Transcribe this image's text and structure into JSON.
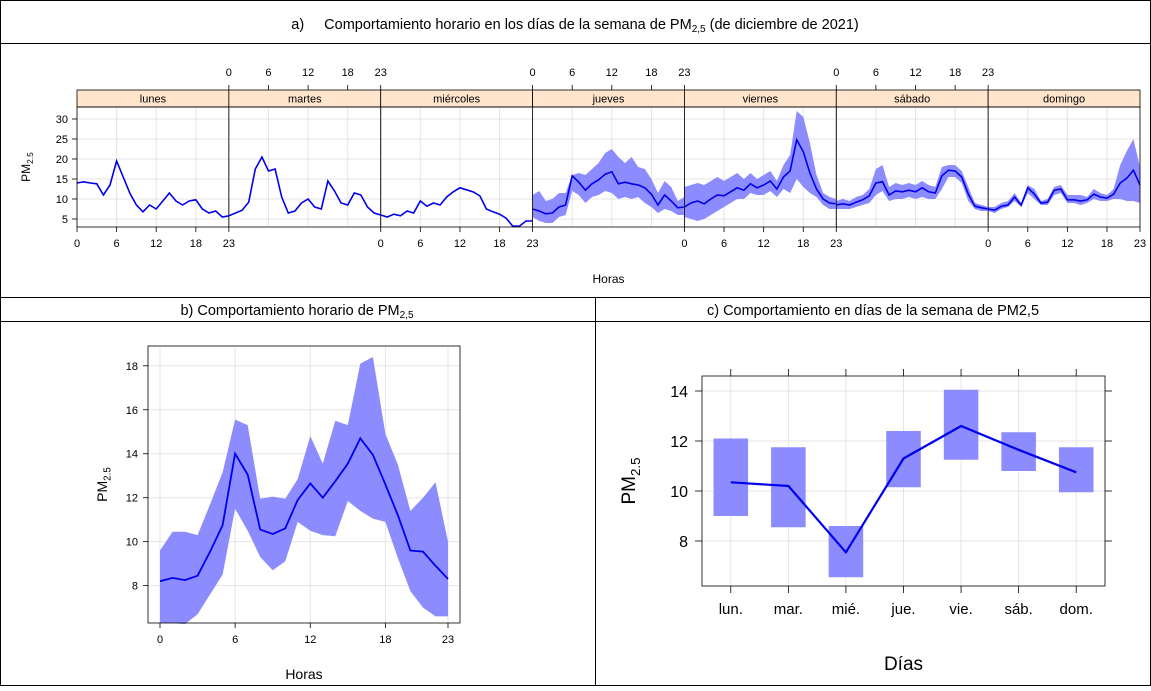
{
  "panels": {
    "a": {
      "caption_prefix": "a)",
      "caption_main": "Comportamiento horario en los días de la semana de PM",
      "caption_sub": "2,5",
      "caption_suffix": " (de diciembre de 2021)"
    },
    "b": {
      "caption_prefix": "b)",
      "caption_main": "Comportamiento horario de PM",
      "caption_sub": "2,5"
    },
    "c": {
      "caption_prefix": "c)",
      "caption_main": "Comportamiento en días de la semana de PM2,5"
    }
  },
  "colors": {
    "line": "#0000EE",
    "band": "#8C8CFF",
    "strip": "#FFE5CC",
    "grid": "#E5E5E5"
  },
  "chart_data": [
    {
      "id": "a",
      "type": "line",
      "xlabel": "Horas",
      "ylabel_main": "PM",
      "ylabel_sub": "2.5",
      "ylim": [
        3,
        33
      ],
      "yticks": [
        5,
        10,
        15,
        20,
        25,
        30
      ],
      "xticks": [
        0,
        6,
        12,
        18,
        23
      ],
      "xlim": [
        0,
        23
      ],
      "panels": [
        {
          "label": "lunes",
          "band": false,
          "y": [
            14,
            14.3,
            14,
            13.8,
            11,
            13.5,
            19.5,
            15.5,
            11.5,
            8.5,
            6.8,
            8.5,
            7.5,
            9.5,
            11.5,
            9.5,
            8.5,
            9.5,
            9.8,
            7.5,
            6.5,
            7,
            5.5,
            5.8
          ]
        },
        {
          "label": "martes",
          "band": false,
          "y": [
            5.8,
            6.5,
            7.2,
            9.2,
            17.5,
            20.5,
            17,
            17.5,
            10.5,
            6.5,
            7,
            9,
            10,
            8,
            7.5,
            14.5,
            12,
            9,
            8.5,
            11.5,
            11,
            8,
            6.5,
            6
          ]
        },
        {
          "label": "miércoles",
          "band": false,
          "y": [
            6,
            5.5,
            6.2,
            5.8,
            7,
            6.5,
            9.5,
            8.2,
            9,
            8.5,
            10.5,
            11.8,
            12.8,
            12.3,
            11.8,
            10.8,
            7.5,
            6.8,
            6.2,
            5.2,
            3.2,
            3.2,
            4.5,
            4.5
          ]
        },
        {
          "label": "jueves",
          "band": true,
          "y": [
            7.5,
            7,
            6.3,
            6.5,
            8,
            8.5,
            15.8,
            14.2,
            12.2,
            13.8,
            14.8,
            16.2,
            16.8,
            13.8,
            14.2,
            13.8,
            13.5,
            12.8,
            11.2,
            8.5,
            11,
            9.5,
            7.8,
            8
          ],
          "lo": [
            5.5,
            4.5,
            4,
            4,
            5.5,
            6,
            12,
            11,
            9,
            10.5,
            11,
            12,
            11.5,
            10,
            10.5,
            10,
            10.5,
            9,
            8,
            6.5,
            7.5,
            7,
            6,
            6
          ],
          "hi": [
            11,
            12,
            9.5,
            10,
            11.5,
            11.5,
            16,
            16.5,
            16,
            17.5,
            19,
            21.5,
            22.5,
            20.5,
            19,
            20.5,
            18,
            17.5,
            15,
            11.5,
            14.5,
            13,
            9.5,
            10.5
          ]
        },
        {
          "label": "viernes",
          "band": true,
          "y": [
            8,
            9,
            9.5,
            8.8,
            10,
            11,
            10.8,
            11.8,
            12.8,
            12.2,
            13.8,
            12.8,
            13.5,
            14.5,
            12.5,
            15.5,
            17,
            24.8,
            21.8,
            16.5,
            12.5,
            10,
            9,
            8.8
          ],
          "lo": [
            5.5,
            5,
            4.5,
            5,
            6,
            7,
            8,
            9,
            10,
            10,
            11.5,
            11,
            11,
            12,
            10.5,
            12.5,
            11.5,
            15,
            13,
            11.5,
            10.5,
            8.5,
            7.5,
            7.5
          ],
          "hi": [
            13,
            13.5,
            14,
            13.5,
            14.5,
            15.5,
            14.5,
            15.5,
            16.5,
            15,
            16.5,
            15,
            16,
            17,
            14.5,
            18.5,
            21,
            32,
            30.5,
            24,
            16,
            11.5,
            10.5,
            10
          ]
        },
        {
          "label": "sábado",
          "band": true,
          "y": [
            8.5,
            8.8,
            8.5,
            9.2,
            9.8,
            10.8,
            14,
            14.3,
            11,
            12,
            11.8,
            12.2,
            11.8,
            12.8,
            11.8,
            11.5,
            15.8,
            17.2,
            17,
            15.5,
            11.2,
            8.2,
            7.8,
            7.5
          ],
          "lo": [
            7.5,
            7.5,
            7.5,
            8,
            8.5,
            9,
            11,
            12,
            9.5,
            10,
            10,
            10.5,
            10,
            10.5,
            10,
            10,
            12.5,
            15.5,
            15.5,
            14,
            9.5,
            7.5,
            7,
            7
          ],
          "hi": [
            9.5,
            10,
            9.5,
            10.5,
            11,
            12.5,
            17.5,
            18.5,
            13,
            14,
            13.5,
            14,
            13.5,
            14.5,
            13.5,
            13,
            18,
            18.5,
            18.5,
            17,
            13,
            9,
            8.5,
            8
          ]
        },
        {
          "label": "domingo",
          "band": true,
          "y": [
            7.5,
            7.2,
            8.2,
            8.5,
            10.5,
            8.5,
            12.8,
            11.2,
            9,
            9.2,
            12.2,
            12.5,
            9.8,
            9.8,
            9.5,
            9.8,
            11.2,
            10.5,
            10.2,
            11.2,
            14,
            15.2,
            17.2,
            13.5
          ],
          "lo": [
            7,
            6.5,
            7.5,
            8,
            9.5,
            8,
            11.5,
            10,
            8.5,
            8.5,
            11,
            11.5,
            9,
            9,
            8.5,
            9,
            10,
            9.5,
            9.5,
            10,
            10,
            9.5,
            9.5,
            9
          ],
          "hi": [
            8,
            8,
            9,
            9.5,
            11.5,
            9,
            13.5,
            12.5,
            9.5,
            10,
            13,
            13.5,
            11,
            11,
            11,
            10.5,
            12.5,
            11.5,
            11,
            12.5,
            18.5,
            22,
            25,
            18
          ]
        }
      ]
    },
    {
      "id": "b",
      "type": "line",
      "xlabel": "Horas",
      "ylabel_main": "PM",
      "ylabel_sub": "2.5",
      "ylim": [
        6.3,
        18.9
      ],
      "yticks": [
        8,
        10,
        12,
        14,
        16,
        18
      ],
      "xticks": [
        0,
        6,
        12,
        18,
        23
      ],
      "xlim": [
        0,
        23
      ],
      "y": [
        8.2,
        8.35,
        8.25,
        8.45,
        9.55,
        10.75,
        14,
        13.05,
        10.55,
        10.35,
        10.6,
        11.9,
        12.65,
        12,
        12.75,
        13.55,
        14.7,
        13.95,
        12.6,
        11.2,
        9.6,
        9.55,
        8.9,
        8.3
      ],
      "lo": [
        6.3,
        6.3,
        6.25,
        6.7,
        7.6,
        8.5,
        11.5,
        10.5,
        9.3,
        8.7,
        9.1,
        10.9,
        10.5,
        10.3,
        10.25,
        11.85,
        11.4,
        11.05,
        10.9,
        9.25,
        7.75,
        7,
        6.6,
        6.6
      ],
      "hi": [
        9.6,
        10.45,
        10.45,
        10.3,
        11.7,
        13.15,
        15.55,
        15.3,
        11.95,
        12.05,
        11.95,
        12.85,
        14.8,
        13.55,
        15.5,
        15.3,
        18.1,
        18.4,
        14.9,
        13.5,
        11.4,
        12,
        12.7,
        10
      ]
    },
    {
      "id": "c",
      "type": "line",
      "xlabel": "Días",
      "ylabel_main": "PM",
      "ylabel_sub": "2.5",
      "ylim": [
        6.2,
        14.6
      ],
      "yticks": [
        8,
        10,
        12,
        14
      ],
      "categories": [
        "lun.",
        "mar.",
        "mié.",
        "jue.",
        "vie.",
        "sáb.",
        "dom."
      ],
      "values": [
        10.35,
        10.2,
        7.55,
        11.3,
        12.6,
        11.65,
        10.75
      ],
      "lo": [
        9,
        8.55,
        6.55,
        10.15,
        11.25,
        10.8,
        9.95
      ],
      "hi": [
        12.1,
        11.75,
        8.6,
        12.4,
        14.05,
        12.35,
        11.75
      ]
    }
  ]
}
